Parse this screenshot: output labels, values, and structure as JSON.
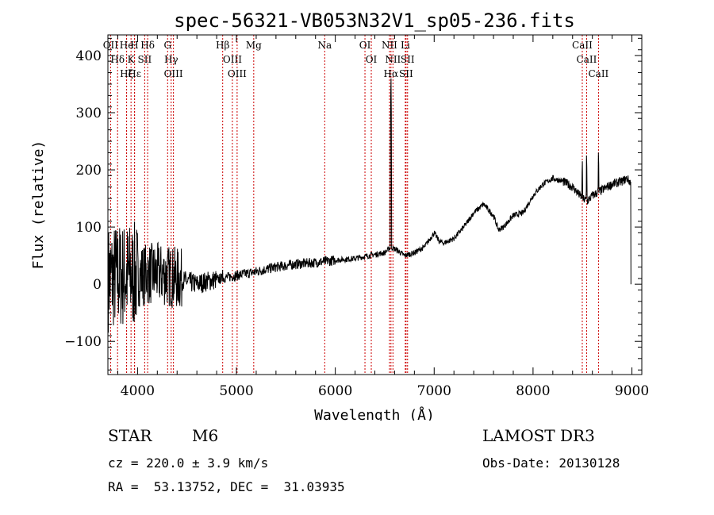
{
  "chart_data": {
    "type": "line",
    "title": "spec-56321-VB053N32V1_sp05-236.fits",
    "xlabel": "Wavelength (Å)",
    "ylabel": "Flux (relative)",
    "xlim": [
      3700,
      9100
    ],
    "ylim": [
      -158,
      436
    ],
    "x_ticks": [
      4000,
      5000,
      6000,
      7000,
      8000,
      9000
    ],
    "x_tick_labels": [
      "4000",
      "5000",
      "6000",
      "7000",
      "8000",
      "9000"
    ],
    "y_ticks": [
      -100,
      0,
      100,
      200,
      300,
      400
    ],
    "y_tick_labels": [
      "−100",
      "0",
      "100",
      "200",
      "300",
      "400"
    ],
    "line_color": "#000000",
    "marker_color": "#cc0000",
    "spectrum_anchors": {
      "x": [
        3700,
        3800,
        3900,
        4000,
        4100,
        4200,
        4300,
        4400,
        4500,
        4600,
        4700,
        4800,
        4900,
        5000,
        5200,
        5400,
        5600,
        5800,
        6000,
        6200,
        6400,
        6500,
        6560,
        6620,
        6700,
        6800,
        6900,
        7000,
        7050,
        7100,
        7200,
        7300,
        7400,
        7500,
        7600,
        7650,
        7700,
        7800,
        7900,
        8000,
        8050,
        8100,
        8200,
        8300,
        8400,
        8450,
        8500,
        8550,
        8600,
        8700,
        8800,
        8900,
        8950,
        9000
      ],
      "y": [
        10,
        15,
        15,
        15,
        18,
        18,
        15,
        10,
        5,
        0,
        5,
        8,
        12,
        15,
        22,
        30,
        35,
        38,
        42,
        45,
        52,
        55,
        65,
        60,
        50,
        55,
        65,
        90,
        75,
        72,
        80,
        100,
        125,
        140,
        120,
        95,
        100,
        120,
        125,
        155,
        165,
        175,
        185,
        180,
        170,
        160,
        150,
        145,
        155,
        165,
        175,
        180,
        185,
        175
      ]
    },
    "spectrum_spikes": [
      {
        "x": 4861,
        "y": 45
      },
      {
        "x": 6563,
        "y": 380
      },
      {
        "x": 8498,
        "y": 235
      },
      {
        "x": 8542,
        "y": 245
      },
      {
        "x": 8662,
        "y": 250
      }
    ],
    "lines": [
      {
        "name": "Hδ",
        "wavelength": 3798
      },
      {
        "name": "OII",
        "wavelength": 3727
      },
      {
        "name": "Hζ",
        "wavelength": 3889
      },
      {
        "name": "Hε",
        "wavelength": 3970
      },
      {
        "name": "He",
        "wavelength": 3889
      },
      {
        "name": "K",
        "wavelength": 3934
      },
      {
        "name": "H",
        "wavelength": 3969
      },
      {
        "name": "SII",
        "wavelength": 4072
      },
      {
        "name": "Hδ",
        "wavelength": 4102
      },
      {
        "name": "OIII",
        "wavelength": 4363
      },
      {
        "name": "Hγ",
        "wavelength": 4340
      },
      {
        "name": "G",
        "wavelength": 4304
      },
      {
        "name": "Hβ",
        "wavelength": 4861
      },
      {
        "name": "OIII",
        "wavelength": 4959
      },
      {
        "name": "OIII",
        "wavelength": 5007
      },
      {
        "name": "Mg",
        "wavelength": 5175
      },
      {
        "name": "Na",
        "wavelength": 5893
      },
      {
        "name": "OI",
        "wavelength": 6300
      },
      {
        "name": "OI",
        "wavelength": 6364
      },
      {
        "name": "Hα",
        "wavelength": 6563
      },
      {
        "name": "NII",
        "wavelength": 6548
      },
      {
        "name": "NII",
        "wavelength": 6583
      },
      {
        "name": "SII",
        "wavelength": 6716
      },
      {
        "name": "SII",
        "wavelength": 6731
      },
      {
        "name": "Li",
        "wavelength": 6708
      },
      {
        "name": "CaII",
        "wavelength": 8498
      },
      {
        "name": "CaII",
        "wavelength": 8542
      },
      {
        "name": "CaII",
        "wavelength": 8662
      }
    ]
  },
  "footer": {
    "object_class": "STAR",
    "subclass": "M6",
    "survey": "LAMOST DR3",
    "cz": "cz = 220.0 ± 3.9 km/s",
    "obs_date": "Obs-Date: 20130128",
    "coords": "RA =  53.13752, DEC =  31.03935"
  }
}
